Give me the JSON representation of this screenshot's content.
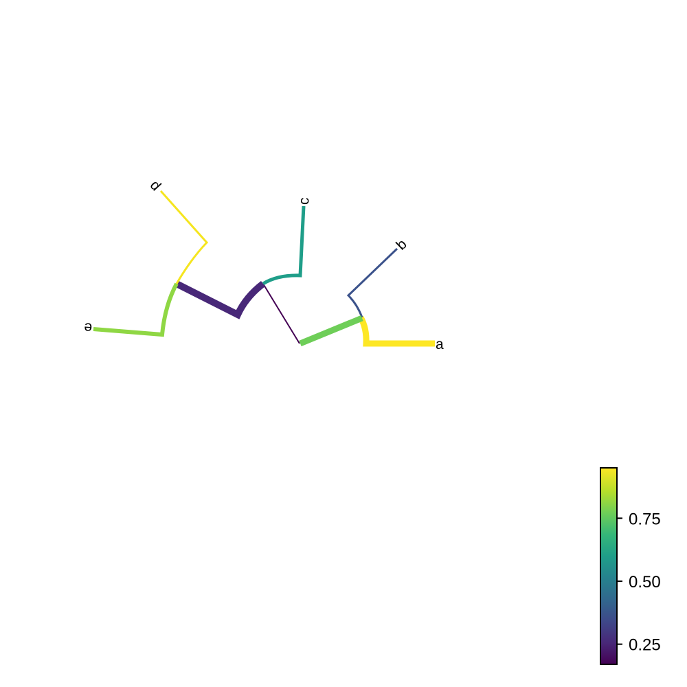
{
  "tree": {
    "tip_labels": {
      "a": "a",
      "b": "b",
      "c": "c",
      "d": "d",
      "e": "e"
    },
    "edges": [
      {
        "id": "a",
        "value": 0.95,
        "label": "a"
      },
      {
        "id": "b",
        "value": 0.28,
        "label": "b"
      },
      {
        "id": "ab",
        "value": 0.8
      },
      {
        "id": "ab-link",
        "value": 0.18
      },
      {
        "id": "c",
        "value": 0.55,
        "label": "c"
      },
      {
        "id": "abc",
        "value": 0.22
      },
      {
        "id": "d",
        "value": 0.93,
        "label": "d"
      },
      {
        "id": "e",
        "value": 0.84,
        "label": "e"
      }
    ]
  },
  "colorbar": {
    "colormap": "viridis",
    "min": 0.17,
    "max": 0.95,
    "ticks": [
      {
        "value": 0.25,
        "label": "0.25"
      },
      {
        "value": 0.5,
        "label": "0.50"
      },
      {
        "value": 0.75,
        "label": "0.75"
      }
    ],
    "colors": [
      "#440154",
      "#482878",
      "#3e4989",
      "#31688e",
      "#26828e",
      "#1f9e89",
      "#35b779",
      "#6ece58",
      "#b5de2b",
      "#fde725"
    ]
  }
}
